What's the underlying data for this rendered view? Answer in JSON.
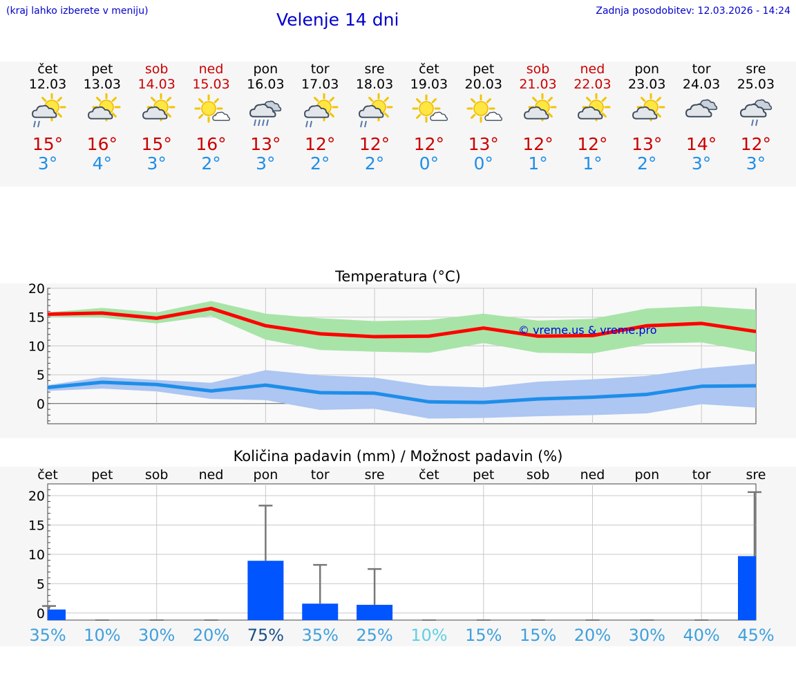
{
  "header": {
    "hint": "(kraj lahko izberete v meniju)",
    "title": "Velenje 14 dni",
    "updated": "Zadnja posodobitev: 12.03.2026 - 14:24"
  },
  "days": [
    {
      "name": "čet",
      "date": "12.03",
      "weekend": false,
      "icon": "sun-cloud-rain-icon",
      "tmax": "15°",
      "tmin": "3°"
    },
    {
      "name": "pet",
      "date": "13.03",
      "weekend": false,
      "icon": "sun-cloud-icon",
      "tmax": "16°",
      "tmin": "4°"
    },
    {
      "name": "sob",
      "date": "14.03",
      "weekend": true,
      "icon": "sun-cloud-icon",
      "tmax": "15°",
      "tmin": "3°"
    },
    {
      "name": "ned",
      "date": "15.03",
      "weekend": true,
      "icon": "sun-small-cloud-icon",
      "tmax": "16°",
      "tmin": "2°"
    },
    {
      "name": "pon",
      "date": "16.03",
      "weekend": false,
      "icon": "cloud-heavy-rain-icon",
      "tmax": "13°",
      "tmin": "3°"
    },
    {
      "name": "tor",
      "date": "17.03",
      "weekend": false,
      "icon": "sun-cloud-rain-icon",
      "tmax": "12°",
      "tmin": "2°"
    },
    {
      "name": "sre",
      "date": "18.03",
      "weekend": false,
      "icon": "sun-cloud-rain-icon",
      "tmax": "12°",
      "tmin": "2°"
    },
    {
      "name": "čet",
      "date": "19.03",
      "weekend": false,
      "icon": "sun-small-cloud-icon",
      "tmax": "12°",
      "tmin": "0°"
    },
    {
      "name": "pet",
      "date": "20.03",
      "weekend": false,
      "icon": "sun-small-cloud-icon",
      "tmax": "13°",
      "tmin": "0°"
    },
    {
      "name": "sob",
      "date": "21.03",
      "weekend": true,
      "icon": "sun-cloud-icon",
      "tmax": "12°",
      "tmin": "1°"
    },
    {
      "name": "ned",
      "date": "22.03",
      "weekend": true,
      "icon": "sun-cloud-icon",
      "tmax": "12°",
      "tmin": "1°"
    },
    {
      "name": "pon",
      "date": "23.03",
      "weekend": false,
      "icon": "sun-cloud-icon",
      "tmax": "13°",
      "tmin": "2°"
    },
    {
      "name": "tor",
      "date": "24.03",
      "weekend": false,
      "icon": "cloudy-icon",
      "tmax": "14°",
      "tmin": "3°"
    },
    {
      "name": "sre",
      "date": "25.03",
      "weekend": false,
      "icon": "cloud-rain-icon",
      "tmax": "12°",
      "tmin": "3°"
    }
  ],
  "chart_data": [
    {
      "type": "line",
      "title": "Temperatura (°C)",
      "ylim": [
        -3.5,
        20
      ],
      "yticks": [
        0,
        5,
        10,
        15,
        20
      ],
      "grid": true,
      "watermark": "© vreme.us & vreme.pro",
      "series": [
        {
          "name": "max",
          "color": "#ff0000",
          "values": [
            15.5,
            15.7,
            14.8,
            16.5,
            13.5,
            12.1,
            11.6,
            11.7,
            13.1,
            11.7,
            11.8,
            13.5,
            13.9,
            12.5
          ],
          "band_low": [
            15.1,
            14.9,
            13.9,
            15.2,
            11.1,
            9.3,
            9.0,
            8.8,
            10.5,
            8.8,
            8.7,
            10.4,
            10.6,
            8.9
          ],
          "band_high": [
            15.8,
            16.6,
            15.8,
            17.8,
            15.6,
            14.8,
            14.3,
            14.5,
            15.6,
            14.4,
            14.7,
            16.5,
            16.9,
            16.3
          ],
          "band_color": "#a8e4a8"
        },
        {
          "name": "min",
          "color": "#1e8ee8",
          "values": [
            2.8,
            3.7,
            3.3,
            2.2,
            3.2,
            1.9,
            1.8,
            0.3,
            0.2,
            0.8,
            1.1,
            1.6,
            3.0,
            3.1
          ],
          "band_low": [
            2.2,
            2.6,
            2.1,
            0.8,
            0.6,
            -1.1,
            -0.9,
            -2.6,
            -2.5,
            -2.2,
            -2.0,
            -1.7,
            -0.1,
            -0.7
          ],
          "band_high": [
            3.2,
            4.6,
            4.1,
            3.6,
            5.8,
            4.9,
            4.5,
            3.1,
            2.8,
            3.8,
            4.2,
            4.8,
            6.1,
            6.9
          ],
          "band_color": "#adc6f2"
        }
      ]
    },
    {
      "type": "bar",
      "title": "Količina padavin (mm) / Možnost padavin (%)",
      "ylim": [
        -1.2,
        22
      ],
      "yticks": [
        0,
        5,
        10,
        15,
        20
      ],
      "grid": true,
      "categories": [
        "čet",
        "pet",
        "sob",
        "ned",
        "pon",
        "tor",
        "sre",
        "čet",
        "pet",
        "sob",
        "ned",
        "pon",
        "tor",
        "sre"
      ],
      "values": [
        0.6,
        0,
        0,
        0,
        8.9,
        1.6,
        1.4,
        0,
        0,
        0,
        0,
        0,
        0,
        9.7
      ],
      "error_high": [
        1.2,
        0,
        0,
        0,
        18.3,
        8.2,
        7.5,
        0,
        0,
        0,
        0,
        0,
        0,
        20.6
      ],
      "bar_color": "#0055ff",
      "probability": [
        "35%",
        "10%",
        "30%",
        "20%",
        "75%",
        "35%",
        "25%",
        "10%",
        "15%",
        "15%",
        "20%",
        "30%",
        "40%",
        "45%"
      ],
      "probability_colors": [
        "#3ea0dd",
        "#3ea0dd",
        "#3ea0dd",
        "#3ea0dd",
        "#1a4f8a",
        "#3ea0dd",
        "#3ea0dd",
        "#5fd0e0",
        "#3ea0dd",
        "#3ea0dd",
        "#3ea0dd",
        "#3ea0dd",
        "#3ea0dd",
        "#3ea0dd"
      ]
    }
  ]
}
